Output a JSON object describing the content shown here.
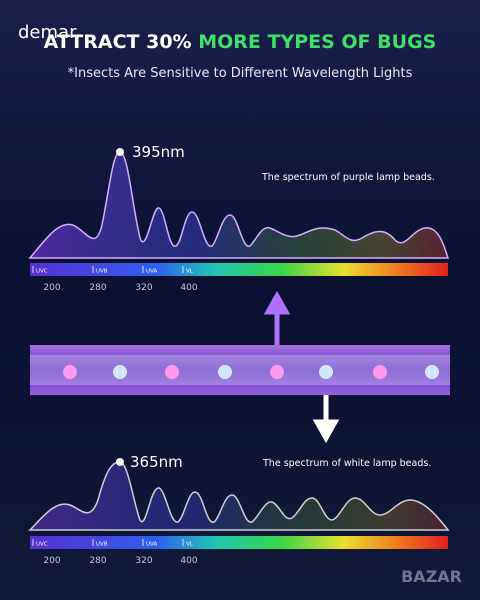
{
  "header": {
    "brand": "demar",
    "title_part1": "ATTRACT 30%",
    "title_part2": "MORE TYPES OF BUGS",
    "subtitle": "*Insects Are Sensitive to Different Wavelength Lights"
  },
  "spectra": [
    {
      "peak_label": "395nm",
      "caption": "The spectrum of purple lamp beads.",
      "bands": [
        "UVC",
        "UVB",
        "UVA",
        "VL"
      ],
      "scale": [
        200,
        280,
        320,
        400
      ]
    },
    {
      "peak_label": "365nm",
      "caption": "The spectrum of white lamp beads.",
      "bands": [
        "UVC",
        "UVB",
        "UVA",
        "VL"
      ],
      "scale": [
        200,
        280,
        320,
        400
      ]
    }
  ],
  "watermark": "BAZAR"
}
